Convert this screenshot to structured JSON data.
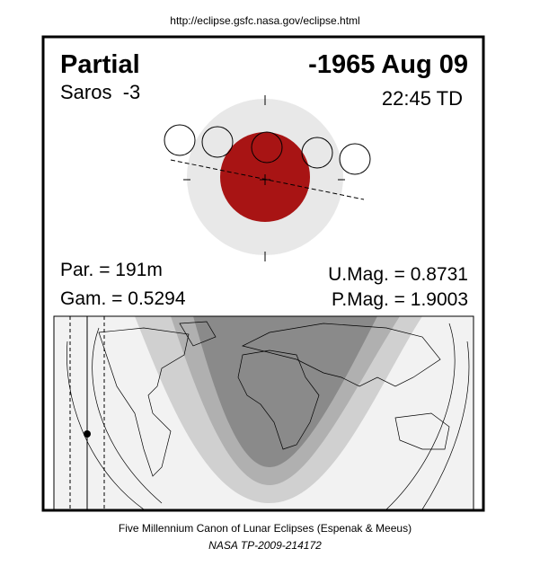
{
  "header": {
    "url": "http://eclipse.gsfc.nasa.gov/eclipse.html"
  },
  "eclipse": {
    "type": "Partial",
    "date": "-1965 Aug 09",
    "saros": "Saros  -3",
    "time": "22:45 TD",
    "par": "Par. = 191m",
    "gam": "Gam. = 0.5294",
    "umag": "U.Mag. = 0.8731",
    "pmag": "P.Mag. = 1.9003"
  },
  "footer": {
    "line1": "Five Millennium Canon of Lunar Eclipses (Espenak & Meeus)",
    "line2": "NASA TP-2009-214172"
  }
}
